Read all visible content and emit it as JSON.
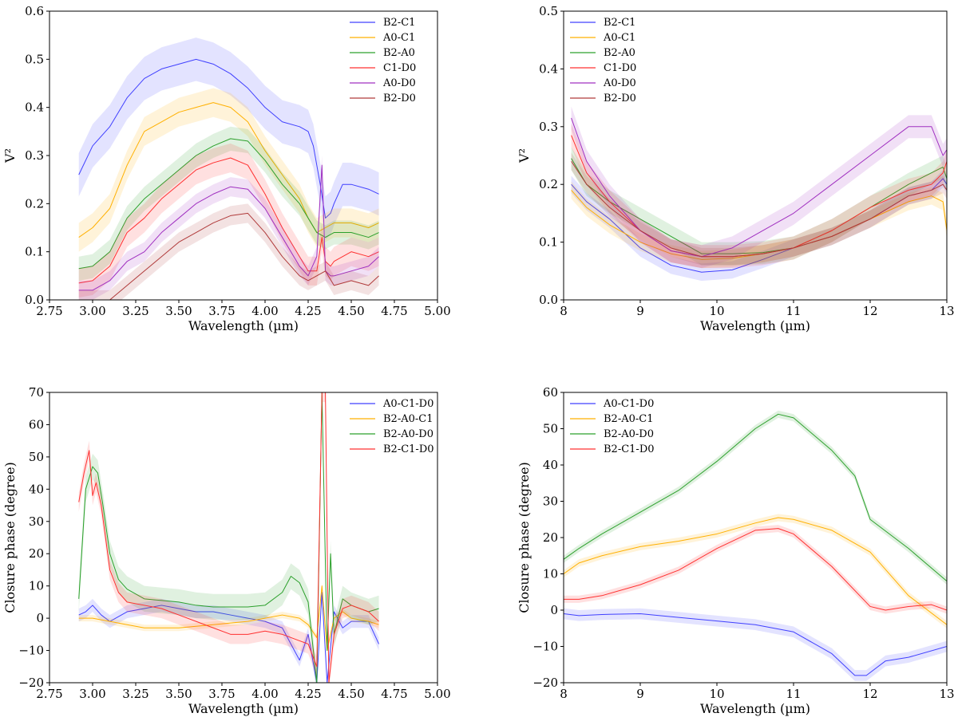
{
  "chart_data": [
    {
      "type": "line",
      "panel": "top-left",
      "xlabel": "Wavelength (µm)",
      "ylabel": "V²",
      "xlim": [
        2.75,
        5.0
      ],
      "ylim": [
        0.0,
        0.6
      ],
      "xticks": [
        "2.75",
        "3.00",
        "3.25",
        "3.50",
        "3.75",
        "4.00",
        "4.25",
        "4.50",
        "4.75",
        "5.00"
      ],
      "yticks": [
        "0.0",
        "0.1",
        "0.2",
        "0.3",
        "0.4",
        "0.5",
        "0.6"
      ],
      "legend_position": "top-right",
      "grid": false,
      "series": [
        {
          "name": "B2-C1",
          "color": "#4040ff",
          "band": 0.045,
          "x": [
            2.92,
            3.0,
            3.1,
            3.2,
            3.3,
            3.4,
            3.5,
            3.6,
            3.7,
            3.8,
            3.9,
            4.0,
            4.1,
            4.2,
            4.25,
            4.28,
            4.3,
            4.32,
            4.35,
            4.38,
            4.4,
            4.45,
            4.5,
            4.6,
            4.66
          ],
          "y": [
            0.26,
            0.32,
            0.36,
            0.42,
            0.46,
            0.48,
            0.49,
            0.5,
            0.49,
            0.47,
            0.44,
            0.4,
            0.37,
            0.36,
            0.35,
            0.32,
            0.28,
            0.24,
            0.17,
            0.18,
            0.2,
            0.24,
            0.24,
            0.23,
            0.22
          ]
        },
        {
          "name": "A0-C1",
          "color": "#ffb000",
          "band": 0.03,
          "x": [
            2.92,
            3.0,
            3.1,
            3.2,
            3.3,
            3.4,
            3.5,
            3.6,
            3.7,
            3.8,
            3.9,
            4.0,
            4.1,
            4.2,
            4.25,
            4.3,
            4.35,
            4.4,
            4.5,
            4.6,
            4.66
          ],
          "y": [
            0.13,
            0.15,
            0.19,
            0.28,
            0.35,
            0.37,
            0.39,
            0.4,
            0.41,
            0.4,
            0.37,
            0.31,
            0.26,
            0.21,
            0.17,
            0.14,
            0.15,
            0.16,
            0.16,
            0.15,
            0.16
          ]
        },
        {
          "name": "B2-A0",
          "color": "#2ca02c",
          "band": 0.025,
          "x": [
            2.92,
            3.0,
            3.1,
            3.2,
            3.3,
            3.4,
            3.5,
            3.6,
            3.7,
            3.8,
            3.9,
            4.0,
            4.1,
            4.2,
            4.25,
            4.3,
            4.35,
            4.4,
            4.5,
            4.6,
            4.66
          ],
          "y": [
            0.065,
            0.07,
            0.1,
            0.17,
            0.21,
            0.24,
            0.27,
            0.3,
            0.32,
            0.335,
            0.33,
            0.29,
            0.24,
            0.2,
            0.17,
            0.14,
            0.13,
            0.14,
            0.14,
            0.13,
            0.14
          ]
        },
        {
          "name": "C1-D0",
          "color": "#ff3030",
          "band": 0.03,
          "x": [
            2.92,
            3.0,
            3.1,
            3.2,
            3.3,
            3.4,
            3.5,
            3.6,
            3.7,
            3.8,
            3.9,
            4.0,
            4.1,
            4.2,
            4.25,
            4.3,
            4.33,
            4.35,
            4.38,
            4.4,
            4.5,
            4.6,
            4.66
          ],
          "y": [
            0.035,
            0.04,
            0.07,
            0.14,
            0.17,
            0.21,
            0.24,
            0.27,
            0.285,
            0.295,
            0.28,
            0.22,
            0.15,
            0.09,
            0.06,
            0.06,
            0.13,
            0.08,
            0.07,
            0.08,
            0.1,
            0.09,
            0.1
          ]
        },
        {
          "name": "A0-D0",
          "color": "#a030c0",
          "band": 0.02,
          "x": [
            2.92,
            3.0,
            3.1,
            3.2,
            3.3,
            3.4,
            3.5,
            3.6,
            3.7,
            3.8,
            3.9,
            4.0,
            4.1,
            4.2,
            4.25,
            4.3,
            4.33,
            4.35,
            4.38,
            4.4,
            4.5,
            4.6,
            4.66
          ],
          "y": [
            0.02,
            0.02,
            0.04,
            0.08,
            0.1,
            0.14,
            0.17,
            0.2,
            0.22,
            0.235,
            0.23,
            0.19,
            0.13,
            0.07,
            0.05,
            0.09,
            0.28,
            0.06,
            0.05,
            0.05,
            0.06,
            0.07,
            0.09
          ]
        },
        {
          "name": "B2-D0",
          "color": "#b03a3a",
          "band": 0.02,
          "x": [
            2.92,
            3.0,
            3.1,
            3.2,
            3.3,
            3.4,
            3.5,
            3.6,
            3.7,
            3.8,
            3.9,
            4.0,
            4.1,
            4.2,
            4.25,
            4.3,
            4.35,
            4.4,
            4.5,
            4.6,
            4.66
          ],
          "y": [
            0.0,
            0.0,
            0.0,
            0.03,
            0.06,
            0.09,
            0.12,
            0.14,
            0.16,
            0.175,
            0.18,
            0.14,
            0.09,
            0.05,
            0.04,
            0.05,
            0.06,
            0.03,
            0.04,
            0.03,
            0.05
          ]
        }
      ]
    },
    {
      "type": "line",
      "panel": "top-right",
      "xlabel": "Wavelength (µm)",
      "ylabel": "V²",
      "xlim": [
        8,
        13
      ],
      "ylim": [
        0.0,
        0.5
      ],
      "xticks": [
        "8",
        "9",
        "10",
        "11",
        "12",
        "13"
      ],
      "yticks": [
        "0.0",
        "0.1",
        "0.2",
        "0.3",
        "0.4",
        "0.5"
      ],
      "legend_position": "top-left",
      "grid": false,
      "series": [
        {
          "name": "B2-C1",
          "color": "#4040ff",
          "band": 0.015,
          "x": [
            8.1,
            8.3,
            8.6,
            9.0,
            9.4,
            9.8,
            10.2,
            10.6,
            11.0,
            11.5,
            12.0,
            12.5,
            12.8,
            12.95,
            13.0
          ],
          "y": [
            0.2,
            0.17,
            0.14,
            0.09,
            0.06,
            0.048,
            0.052,
            0.07,
            0.09,
            0.11,
            0.14,
            0.18,
            0.19,
            0.21,
            0.2
          ]
        },
        {
          "name": "A0-C1",
          "color": "#ffb000",
          "band": 0.015,
          "x": [
            8.1,
            8.3,
            8.6,
            9.0,
            9.4,
            9.8,
            10.2,
            10.6,
            11.0,
            11.5,
            12.0,
            12.5,
            12.8,
            12.95,
            13.0
          ],
          "y": [
            0.19,
            0.16,
            0.13,
            0.1,
            0.08,
            0.07,
            0.072,
            0.08,
            0.09,
            0.11,
            0.14,
            0.17,
            0.18,
            0.17,
            0.12
          ]
        },
        {
          "name": "B2-A0",
          "color": "#2ca02c",
          "band": 0.02,
          "x": [
            8.1,
            8.3,
            8.6,
            9.0,
            9.4,
            9.8,
            10.2,
            10.6,
            11.0,
            11.5,
            12.0,
            12.5,
            12.8,
            12.95,
            13.0
          ],
          "y": [
            0.245,
            0.2,
            0.17,
            0.14,
            0.11,
            0.08,
            0.08,
            0.082,
            0.09,
            0.12,
            0.16,
            0.2,
            0.22,
            0.23,
            0.21
          ]
        },
        {
          "name": "C1-D0",
          "color": "#ff3030",
          "band": 0.02,
          "x": [
            8.1,
            8.3,
            8.6,
            9.0,
            9.4,
            9.8,
            10.2,
            10.6,
            11.0,
            11.5,
            12.0,
            12.5,
            12.8,
            12.95,
            13.0
          ],
          "y": [
            0.285,
            0.22,
            0.17,
            0.12,
            0.085,
            0.075,
            0.075,
            0.08,
            0.09,
            0.12,
            0.16,
            0.19,
            0.2,
            0.22,
            0.24
          ]
        },
        {
          "name": "A0-D0",
          "color": "#a030c0",
          "band": 0.02,
          "x": [
            8.1,
            8.3,
            8.6,
            9.0,
            9.4,
            9.8,
            10.2,
            10.6,
            11.0,
            11.5,
            12.0,
            12.5,
            12.8,
            12.95,
            13.0
          ],
          "y": [
            0.315,
            0.24,
            0.18,
            0.12,
            0.085,
            0.075,
            0.09,
            0.12,
            0.15,
            0.2,
            0.25,
            0.3,
            0.3,
            0.25,
            0.26
          ]
        },
        {
          "name": "B2-D0",
          "color": "#b03a3a",
          "band": 0.015,
          "x": [
            8.1,
            8.3,
            8.6,
            9.0,
            9.4,
            9.8,
            10.2,
            10.6,
            11.0,
            11.5,
            12.0,
            12.5,
            12.8,
            12.95,
            13.0
          ],
          "y": [
            0.24,
            0.2,
            0.16,
            0.12,
            0.09,
            0.075,
            0.075,
            0.08,
            0.09,
            0.11,
            0.14,
            0.18,
            0.19,
            0.2,
            0.19
          ]
        }
      ]
    },
    {
      "type": "line",
      "panel": "bottom-left",
      "xlabel": "Wavelength (µm)",
      "ylabel": "Closure phase (degree)",
      "xlim": [
        2.75,
        5.0
      ],
      "ylim": [
        -20,
        70
      ],
      "xticks": [
        "2.75",
        "3.00",
        "3.25",
        "3.50",
        "3.75",
        "4.00",
        "4.25",
        "4.50",
        "4.75",
        "5.00"
      ],
      "yticks": [
        "−20",
        "−10",
        "0",
        "10",
        "20",
        "30",
        "40",
        "50",
        "60",
        "70"
      ],
      "legend_position": "top-right",
      "grid": false,
      "series": [
        {
          "name": "A0-C1-D0",
          "color": "#4040ff",
          "band": 2,
          "x": [
            2.92,
            2.96,
            3.0,
            3.05,
            3.1,
            3.2,
            3.3,
            3.4,
            3.5,
            3.6,
            3.7,
            3.8,
            3.9,
            4.0,
            4.1,
            4.15,
            4.2,
            4.25,
            4.3,
            4.33,
            4.36,
            4.4,
            4.45,
            4.5,
            4.6,
            4.66
          ],
          "y": [
            1,
            2,
            4,
            1,
            -1,
            2,
            3,
            4,
            3,
            2,
            2,
            1,
            0,
            -1,
            -3,
            -8,
            -13,
            -5,
            -20,
            8,
            -20,
            2,
            -3,
            -1,
            -1,
            -8
          ]
        },
        {
          "name": "B2-A0-C1",
          "color": "#ffb000",
          "band": 1,
          "x": [
            2.92,
            3.0,
            3.1,
            3.2,
            3.3,
            3.4,
            3.5,
            3.6,
            3.7,
            3.8,
            3.9,
            4.0,
            4.1,
            4.2,
            4.25,
            4.3,
            4.33,
            4.36,
            4.4,
            4.45,
            4.5,
            4.6,
            4.66
          ],
          "y": [
            0,
            0,
            -1,
            -2,
            -3,
            -3,
            -3,
            -2.5,
            -2,
            -1.5,
            -1,
            0,
            1,
            0,
            -2,
            -6,
            10,
            -10,
            0,
            2,
            0,
            -1,
            -2
          ]
        },
        {
          "name": "B2-A0-D0",
          "color": "#2ca02c",
          "band": 4,
          "x": [
            2.92,
            2.96,
            3.0,
            3.03,
            3.06,
            3.1,
            3.15,
            3.2,
            3.3,
            3.4,
            3.5,
            3.6,
            3.7,
            3.8,
            3.9,
            4.0,
            4.1,
            4.15,
            4.2,
            4.25,
            4.3,
            4.33,
            4.36,
            4.38,
            4.4,
            4.45,
            4.5,
            4.6,
            4.66
          ],
          "y": [
            6,
            40,
            47,
            45,
            35,
            20,
            12,
            9,
            6,
            5.5,
            5,
            4,
            3.5,
            3.5,
            3.5,
            4,
            8,
            13,
            11,
            5,
            -20,
            70,
            -10,
            20,
            -5,
            6,
            4,
            2,
            3
          ]
        },
        {
          "name": "B2-C1-D0",
          "color": "#ff3030",
          "band": 3,
          "x": [
            2.92,
            2.95,
            2.98,
            3.0,
            3.02,
            3.05,
            3.1,
            3.15,
            3.2,
            3.3,
            3.4,
            3.5,
            3.6,
            3.7,
            3.8,
            3.9,
            4.0,
            4.1,
            4.2,
            4.25,
            4.3,
            4.33,
            4.35,
            4.37,
            4.4,
            4.45,
            4.5,
            4.6,
            4.66
          ],
          "y": [
            36,
            45,
            52,
            38,
            42,
            35,
            15,
            8,
            5,
            4,
            3,
            1,
            -1,
            -3,
            -5,
            -5,
            -4,
            -5,
            -7,
            -8,
            -15,
            70,
            70,
            -20,
            -5,
            3,
            4,
            2,
            -1
          ]
        }
      ]
    },
    {
      "type": "line",
      "panel": "bottom-right",
      "xlabel": "Wavelength (µm)",
      "ylabel": "Closure phase (degree)",
      "xlim": [
        8,
        13
      ],
      "ylim": [
        -20,
        60
      ],
      "xticks": [
        "8",
        "9",
        "10",
        "11",
        "12",
        "13"
      ],
      "yticks": [
        "−20",
        "−10",
        "0",
        "10",
        "20",
        "30",
        "40",
        "50",
        "60"
      ],
      "legend_position": "top-left",
      "grid": false,
      "series": [
        {
          "name": "A0-C1-D0",
          "color": "#4040ff",
          "band": 1.5,
          "x": [
            8.0,
            8.2,
            8.5,
            9.0,
            9.5,
            10.0,
            10.5,
            11.0,
            11.5,
            11.8,
            11.95,
            12.2,
            12.5,
            13.0
          ],
          "y": [
            -1,
            -1.5,
            -1.2,
            -1,
            -2,
            -3,
            -4,
            -6,
            -12,
            -18,
            -18,
            -14,
            -13,
            -10
          ]
        },
        {
          "name": "B2-A0-C1",
          "color": "#ffb000",
          "band": 1,
          "x": [
            8.0,
            8.2,
            8.5,
            9.0,
            9.5,
            10.0,
            10.5,
            10.8,
            11.0,
            11.5,
            12.0,
            12.5,
            13.0
          ],
          "y": [
            10,
            13,
            15,
            17.5,
            19,
            21,
            24,
            25.5,
            25,
            22,
            16,
            4,
            -4
          ]
        },
        {
          "name": "B2-A0-D0",
          "color": "#2ca02c",
          "band": 1,
          "x": [
            8.0,
            8.2,
            8.5,
            9.0,
            9.5,
            10.0,
            10.5,
            10.8,
            11.0,
            11.5,
            11.8,
            12.0,
            12.5,
            13.0
          ],
          "y": [
            14,
            17,
            21,
            27,
            33,
            41,
            50,
            54,
            53,
            44,
            37,
            25,
            17,
            8
          ]
        },
        {
          "name": "B2-C1-D0",
          "color": "#ff3030",
          "band": 1,
          "x": [
            8.0,
            8.2,
            8.5,
            9.0,
            9.5,
            10.0,
            10.5,
            10.8,
            11.0,
            11.5,
            12.0,
            12.2,
            12.5,
            12.8,
            13.0
          ],
          "y": [
            3,
            3,
            4,
            7,
            11,
            17,
            22,
            22.5,
            21,
            12,
            1,
            0,
            1,
            1.5,
            0
          ]
        }
      ]
    }
  ]
}
